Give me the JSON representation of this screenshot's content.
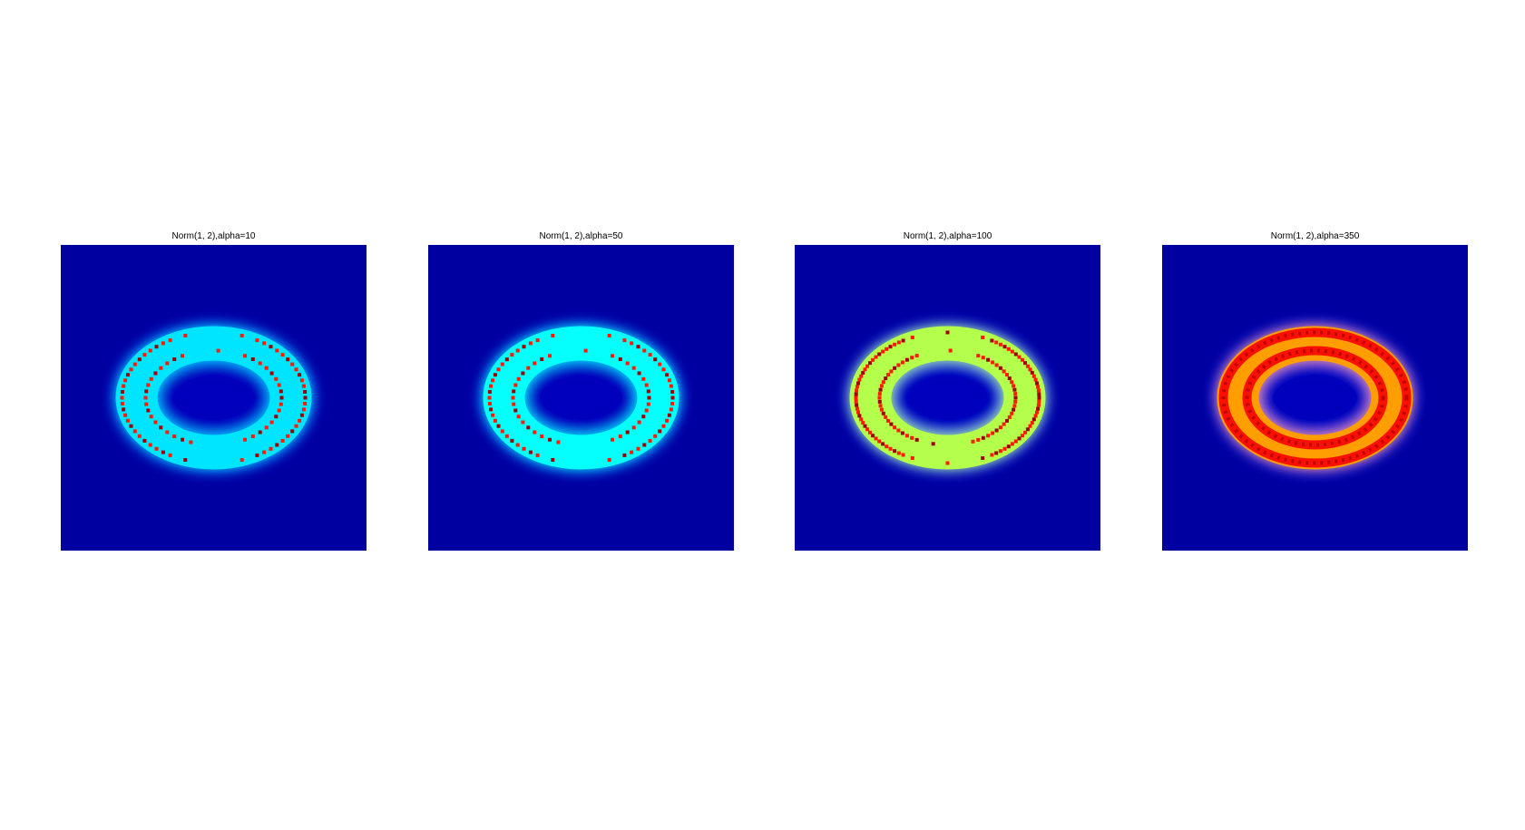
{
  "figure": {
    "background": "#ffffff",
    "colormap": "jet",
    "colormap_stops": [
      "#00008f",
      "#0000ff",
      "#00ffff",
      "#ffff00",
      "#ff0000",
      "#800000"
    ]
  },
  "chart_data": [
    {
      "type": "heatmap",
      "title": "Norm(1, 2),alpha=10",
      "alpha": 10,
      "axes": "off",
      "shape": "elliptical ring",
      "ring_base_level": 0.35,
      "peak_level": 0.85,
      "pattern": "scattered red dots along two inner concentric tracks"
    },
    {
      "type": "heatmap",
      "title": "Norm(1, 2),alpha=50",
      "alpha": 50,
      "axes": "off",
      "shape": "elliptical ring",
      "ring_base_level": 0.38,
      "peak_level": 0.85,
      "pattern": "scattered red dots along two inner concentric tracks"
    },
    {
      "type": "heatmap",
      "title": "Norm(1, 2),alpha=100",
      "alpha": 100,
      "axes": "off",
      "shape": "elliptical ring",
      "ring_base_level": 0.55,
      "peak_level": 0.85,
      "pattern": "denser red dots along two inner concentric tracks"
    },
    {
      "type": "heatmap",
      "title": "Norm(1, 2),alpha=350",
      "alpha": 350,
      "axes": "off",
      "shape": "elliptical ring",
      "ring_base_level": 0.72,
      "peak_level": 0.88,
      "pattern": "continuous dark-red bands along two inner concentric tracks"
    }
  ]
}
